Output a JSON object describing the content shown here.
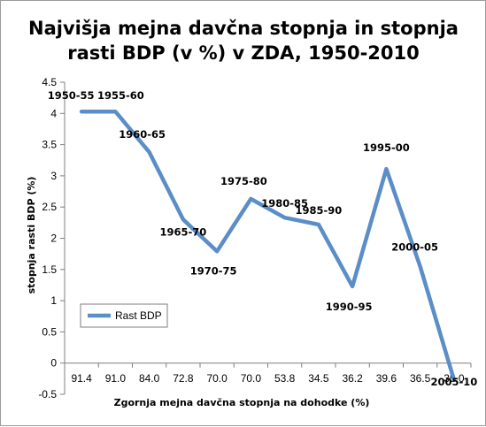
{
  "chart_data": {
    "type": "line",
    "title_lines": [
      "Najvišja mejna davčna stopnja  in stopnja",
      "rasti BDP (v %) v ZDA, 1950-2010"
    ],
    "xlabel": "Zgornja mejna davčna stopnja na dohodke (%)",
    "ylabel": "stopnja rasti BDP (%)",
    "ylim": [
      -0.5,
      4.5
    ],
    "yticks": [
      "-0.5",
      "0",
      "0.5",
      "1",
      "1.5",
      "2",
      "2.5",
      "3",
      "3.5",
      "4",
      "4.5"
    ],
    "categories": [
      "91.4",
      "91.0",
      "84.0",
      "72.8",
      "70.0",
      "70.0",
      "53.8",
      "34.5",
      "36.2",
      "39.6",
      "36.5",
      "35.0"
    ],
    "point_labels": [
      "1950-55",
      "1955-60",
      "1960-65",
      "1965-70",
      "1970-75",
      "1975-80",
      "1980-85",
      "1985-90",
      "1990-95",
      "1995-00",
      "2000-05",
      "2005-10"
    ],
    "series": [
      {
        "name": "Rast BDP",
        "color": "#5b8ec8",
        "values": [
          4.03,
          4.03,
          3.38,
          2.3,
          1.79,
          2.63,
          2.33,
          2.22,
          1.23,
          3.11,
          1.55,
          -0.27
        ]
      }
    ],
    "legend_position": "bottom-left",
    "grid": false
  }
}
